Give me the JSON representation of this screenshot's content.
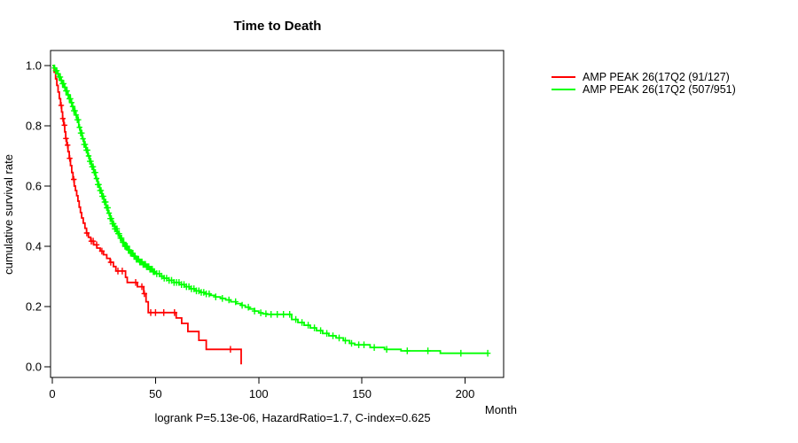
{
  "chart_data": {
    "type": "line",
    "variant": "kaplan_meier_step",
    "title": "Time to Death",
    "xlabel": "Month",
    "ylabel": "cumulative survival rate",
    "xlim": [
      0,
      219
    ],
    "ylim": [
      0,
      1
    ],
    "x_ticks": [
      0,
      50,
      100,
      150,
      200
    ],
    "y_ticks": [
      0,
      0.2,
      0.4,
      0.6,
      0.8,
      1.0
    ],
    "y_tick_labels": [
      "0.0",
      "0.2",
      "0.4",
      "0.6",
      "0.8",
      "1.0"
    ],
    "grid": false,
    "legend_position": "outside-right",
    "footnote": "logrank P=5.13e-06, HazardRatio=1.7, C-index=0.625",
    "series": [
      {
        "name": "AMP PEAK 26(17Q2 (91/127)",
        "color": "#ff0000",
        "end_month": 91.5,
        "steps": [
          [
            0,
            1
          ],
          [
            0.9,
            0.978
          ],
          [
            1.6,
            0.956
          ],
          [
            2.2,
            0.934
          ],
          [
            2.8,
            0.912
          ],
          [
            3.4,
            0.89
          ],
          [
            4,
            0.868
          ],
          [
            4.5,
            0.846
          ],
          [
            5,
            0.824
          ],
          [
            5.5,
            0.802
          ],
          [
            6,
            0.78
          ],
          [
            6.5,
            0.758
          ],
          [
            7,
            0.736
          ],
          [
            7.6,
            0.714
          ],
          [
            8.2,
            0.692
          ],
          [
            8.8,
            0.668
          ],
          [
            9.4,
            0.645
          ],
          [
            10,
            0.622
          ],
          [
            10.6,
            0.6
          ],
          [
            11.2,
            0.585
          ],
          [
            11.8,
            0.568
          ],
          [
            12.4,
            0.55
          ],
          [
            13,
            0.53
          ],
          [
            13.6,
            0.512
          ],
          [
            14.2,
            0.494
          ],
          [
            15,
            0.477
          ],
          [
            15.8,
            0.46
          ],
          [
            16.6,
            0.444
          ],
          [
            17.5,
            0.43
          ],
          [
            18.6,
            0.417
          ],
          [
            20,
            0.405
          ],
          [
            21.6,
            0.394
          ],
          [
            23.2,
            0.384
          ],
          [
            24.8,
            0.372
          ],
          [
            26.4,
            0.36
          ],
          [
            28,
            0.347
          ],
          [
            29.6,
            0.333
          ],
          [
            30.8,
            0.318
          ],
          [
            35.5,
            0.297
          ],
          [
            36.3,
            0.28
          ],
          [
            41.2,
            0.266
          ],
          [
            44.3,
            0.243
          ],
          [
            45.4,
            0.216
          ],
          [
            46.5,
            0.18
          ],
          [
            60,
            0.162
          ],
          [
            62.7,
            0.144
          ],
          [
            65.7,
            0.117
          ],
          [
            71,
            0.088
          ],
          [
            74.6,
            0.058
          ],
          [
            91.5,
            0.008
          ]
        ],
        "censor_marks": [
          4.3,
          5.1,
          5.9,
          6.6,
          7.4,
          8.4,
          10.4,
          16.7,
          18.9,
          19.8,
          21.5,
          24,
          28.3,
          31.8,
          33.9,
          40.4,
          43.4,
          44.6,
          47.7,
          50,
          54,
          59.2,
          86.3
        ]
      },
      {
        "name": "AMP PEAK 26(17Q2 (507/951)",
        "color": "#00ff00",
        "end_month": 211,
        "steps": [
          [
            0,
            1
          ],
          [
            0.8,
            0.992
          ],
          [
            1.6,
            0.983
          ],
          [
            2.4,
            0.973
          ],
          [
            3.2,
            0.962
          ],
          [
            4,
            0.951
          ],
          [
            4.8,
            0.94
          ],
          [
            5.6,
            0.928
          ],
          [
            6.4,
            0.916
          ],
          [
            7.2,
            0.903
          ],
          [
            8,
            0.89
          ],
          [
            8.8,
            0.877
          ],
          [
            9.6,
            0.864
          ],
          [
            10.4,
            0.85
          ],
          [
            11.2,
            0.836
          ],
          [
            12,
            0.82
          ],
          [
            12.8,
            0.795
          ],
          [
            13.6,
            0.776
          ],
          [
            14.5,
            0.757
          ],
          [
            15.4,
            0.738
          ],
          [
            16.3,
            0.719
          ],
          [
            17.2,
            0.7
          ],
          [
            18.1,
            0.682
          ],
          [
            19,
            0.664
          ],
          [
            20,
            0.645
          ],
          [
            21,
            0.625
          ],
          [
            22,
            0.605
          ],
          [
            23,
            0.585
          ],
          [
            24,
            0.566
          ],
          [
            25,
            0.547
          ],
          [
            26,
            0.528
          ],
          [
            27,
            0.51
          ],
          [
            28,
            0.492
          ],
          [
            29,
            0.475
          ],
          [
            30.2,
            0.458
          ],
          [
            31.4,
            0.442
          ],
          [
            32.6,
            0.427
          ],
          [
            33.8,
            0.413
          ],
          [
            35,
            0.4
          ],
          [
            36.4,
            0.388
          ],
          [
            37.8,
            0.377
          ],
          [
            39.2,
            0.367
          ],
          [
            40.6,
            0.357
          ],
          [
            42,
            0.348
          ],
          [
            43.6,
            0.34
          ],
          [
            45.2,
            0.332
          ],
          [
            46.8,
            0.324
          ],
          [
            48.4,
            0.316
          ],
          [
            50,
            0.309
          ],
          [
            52,
            0.301
          ],
          [
            54,
            0.294
          ],
          [
            56.5,
            0.287
          ],
          [
            59,
            0.28
          ],
          [
            61.5,
            0.273
          ],
          [
            64,
            0.266
          ],
          [
            66.5,
            0.259
          ],
          [
            69,
            0.252
          ],
          [
            71.5,
            0.247
          ],
          [
            74,
            0.242
          ],
          [
            76.5,
            0.237
          ],
          [
            79,
            0.232
          ],
          [
            81.5,
            0.227
          ],
          [
            84,
            0.222
          ],
          [
            86.5,
            0.216
          ],
          [
            89,
            0.21
          ],
          [
            91.5,
            0.204
          ],
          [
            93.5,
            0.198
          ],
          [
            95.5,
            0.192
          ],
          [
            98,
            0.185
          ],
          [
            100,
            0.179
          ],
          [
            102,
            0.176
          ],
          [
            104,
            0.174
          ],
          [
            116,
            0.157
          ],
          [
            119,
            0.147
          ],
          [
            122,
            0.138
          ],
          [
            125,
            0.129
          ],
          [
            128,
            0.12
          ],
          [
            131,
            0.111
          ],
          [
            134,
            0.103
          ],
          [
            137.5,
            0.096
          ],
          [
            141,
            0.087
          ],
          [
            144,
            0.078
          ],
          [
            146.5,
            0.073
          ],
          [
            154,
            0.064
          ],
          [
            161,
            0.058
          ],
          [
            169,
            0.053
          ],
          [
            188,
            0.045
          ]
        ],
        "censor_ranges": [
          {
            "from": 1.1,
            "to": 49.8,
            "step": 0.55
          },
          {
            "from": 50.6,
            "to": 74.8,
            "step": 1.2
          }
        ],
        "censor_marks": [
          76,
          79.2,
          82.4,
          85.6,
          88.8,
          92,
          95,
          98,
          101,
          103.5,
          106,
          109,
          112,
          115,
          118,
          121,
          124,
          127,
          130,
          133,
          136,
          139,
          142,
          145,
          148.5,
          151,
          156,
          162,
          172,
          182,
          198,
          211
        ]
      }
    ]
  }
}
